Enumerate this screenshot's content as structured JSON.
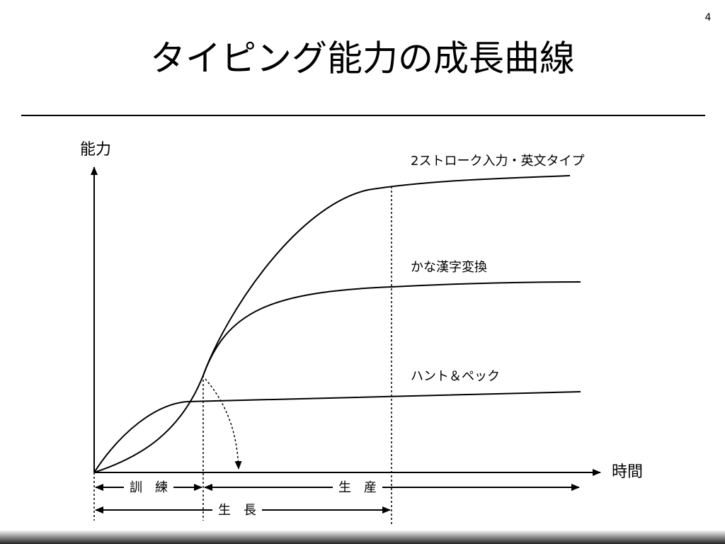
{
  "slide_number": "4",
  "title": "タイピング能力の成長曲線",
  "diagram": {
    "y_axis_label": "能力",
    "x_axis_label": "時間",
    "curves": [
      {
        "label": "2ストローク入力・英文タイプ"
      },
      {
        "label": "かな漢字変換"
      },
      {
        "label": "ハント＆ペック"
      }
    ],
    "phases": [
      {
        "label": "訓　練"
      },
      {
        "label": "生　産"
      },
      {
        "label": "生　長"
      }
    ]
  }
}
